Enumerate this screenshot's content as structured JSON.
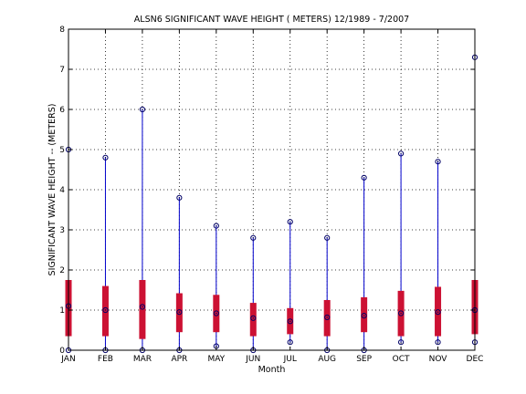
{
  "chart_data": {
    "type": "boxplot",
    "title": "ALSN6  SIGNIFICANT WAVE HEIGHT ( METERS) 12/1989 - 7/2007",
    "xlabel": "Month",
    "ylabel": "SIGNIFICANT WAVE HEIGHT -- (METERS)",
    "ylim": [
      0,
      8
    ],
    "yticks": [
      "0",
      "1",
      "2",
      "3",
      "4",
      "5",
      "6",
      "7",
      "8"
    ],
    "grid": true,
    "categories": [
      "JAN",
      "FEB",
      "MAR",
      "APR",
      "MAY",
      "JUN",
      "JUL",
      "AUG",
      "SEP",
      "OCT",
      "NOV",
      "DEC"
    ],
    "series": [
      {
        "min": [
          0.0,
          0.0,
          0.0,
          0.0,
          0.1,
          0.0,
          0.2,
          0.0,
          0.0,
          0.2,
          0.2,
          0.2
        ],
        "q1": [
          0.35,
          0.35,
          0.28,
          0.45,
          0.45,
          0.35,
          0.4,
          0.35,
          0.45,
          0.35,
          0.35,
          0.4
        ],
        "mean": [
          1.1,
          1.0,
          1.08,
          0.95,
          0.92,
          0.8,
          0.72,
          0.82,
          0.86,
          0.92,
          0.95,
          1.0
        ],
        "q3": [
          1.75,
          1.6,
          1.75,
          1.42,
          1.38,
          1.18,
          1.05,
          1.25,
          1.32,
          1.48,
          1.58,
          1.75
        ],
        "max": [
          5.0,
          4.8,
          6.0,
          3.8,
          3.1,
          2.8,
          3.2,
          2.8,
          4.3,
          4.9,
          4.7,
          7.3
        ]
      }
    ],
    "colors": {
      "whisker": "#0000cc",
      "box": "#cc1133",
      "marker": "#000066",
      "grid": "#000000"
    }
  }
}
